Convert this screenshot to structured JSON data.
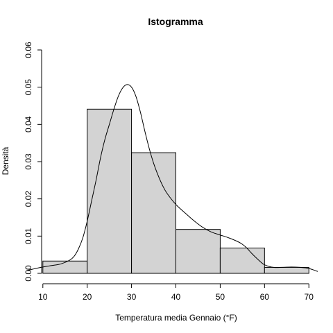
{
  "chart_data": {
    "type": "bar",
    "title": "Istogramma",
    "xlabel": "Temperatura media Gennaio (°F)",
    "ylabel": "Densità",
    "bins": [
      {
        "x0": 10,
        "x1": 20,
        "density": 0.0033
      },
      {
        "x0": 20,
        "x1": 30,
        "density": 0.0441
      },
      {
        "x0": 30,
        "x1": 40,
        "density": 0.0324
      },
      {
        "x0": 40,
        "x1": 50,
        "density": 0.0118
      },
      {
        "x0": 50,
        "x1": 60,
        "density": 0.0068
      },
      {
        "x0": 60,
        "x1": 70,
        "density": 0.0016
      }
    ],
    "density_curve": {
      "x": [
        6.5,
        8,
        10,
        12,
        14,
        16,
        17,
        18,
        19,
        20,
        21,
        22,
        23,
        24,
        25,
        26,
        27,
        28,
        29,
        30,
        31,
        32,
        33,
        34,
        35,
        36,
        37,
        38,
        40,
        42,
        44,
        46,
        48,
        50,
        52,
        54,
        55,
        56,
        57,
        58,
        59,
        60,
        62,
        64,
        66,
        68,
        70,
        72
      ],
      "y": [
        0.0008,
        0.0012,
        0.0017,
        0.0021,
        0.0025,
        0.0035,
        0.0045,
        0.0065,
        0.0095,
        0.014,
        0.0195,
        0.025,
        0.031,
        0.036,
        0.04,
        0.044,
        0.0475,
        0.0498,
        0.0507,
        0.05,
        0.0475,
        0.0433,
        0.0382,
        0.0335,
        0.0295,
        0.0263,
        0.0236,
        0.0215,
        0.0185,
        0.0163,
        0.0142,
        0.0124,
        0.0111,
        0.0103,
        0.0095,
        0.0085,
        0.0078,
        0.0068,
        0.0055,
        0.0043,
        0.0032,
        0.0023,
        0.0016,
        0.0016,
        0.0017,
        0.0016,
        0.0013,
        0.0005
      ]
    },
    "xticks": [
      10,
      20,
      30,
      40,
      50,
      60,
      70
    ],
    "yticks": [
      "0.00",
      "0.01",
      "0.02",
      "0.03",
      "0.04",
      "0.05",
      "0.06"
    ],
    "xlim": [
      8,
      72
    ],
    "ylim": [
      0,
      0.06
    ],
    "bar_color": "#d3d3d3",
    "edge_color": "#000000",
    "grid": false,
    "legend": "none"
  }
}
